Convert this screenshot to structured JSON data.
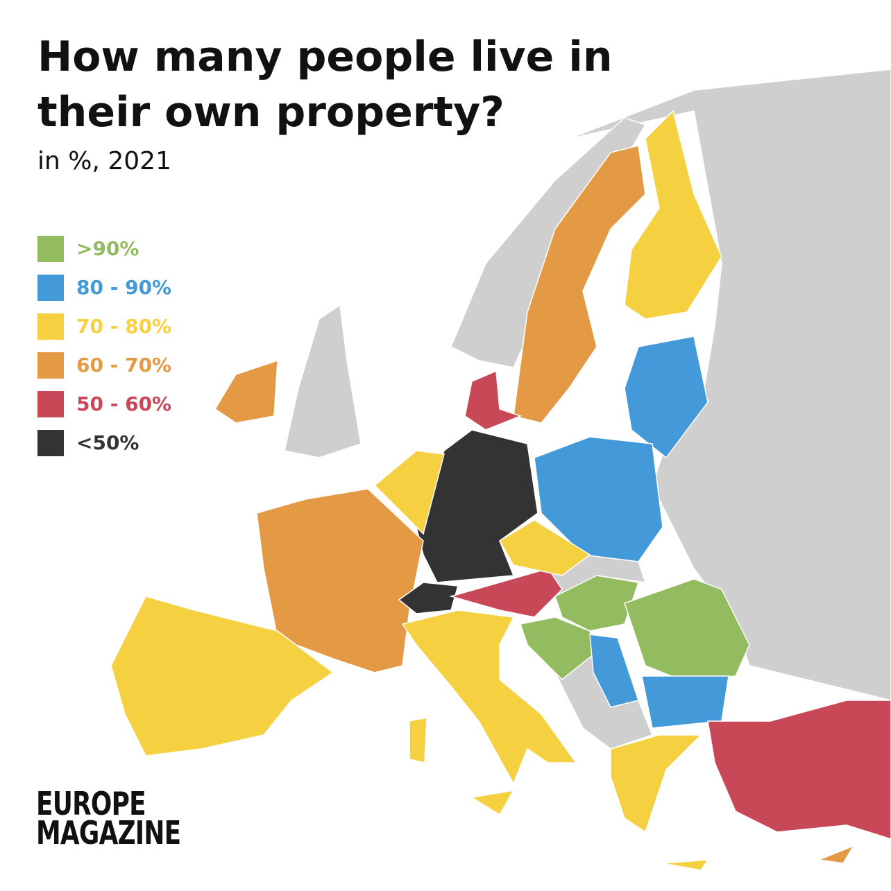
{
  "title": "How many people live in their own property?",
  "subtitle": "in %, 2021",
  "legend": [
    {
      "label": ">90%",
      "color": "#93bb5f"
    },
    {
      "label": "80 - 90%",
      "color": "#4499d8"
    },
    {
      "label": "70 - 80%",
      "color": "#f5d142"
    },
    {
      "label": "60 - 70%",
      "color": "#e49a44"
    },
    {
      "label": "50 - 60%",
      "color": "#c94858"
    },
    {
      "label": "<50%",
      "color": "#333333"
    }
  ],
  "brand": [
    "EUROPE",
    "MAGAZINE"
  ]
}
